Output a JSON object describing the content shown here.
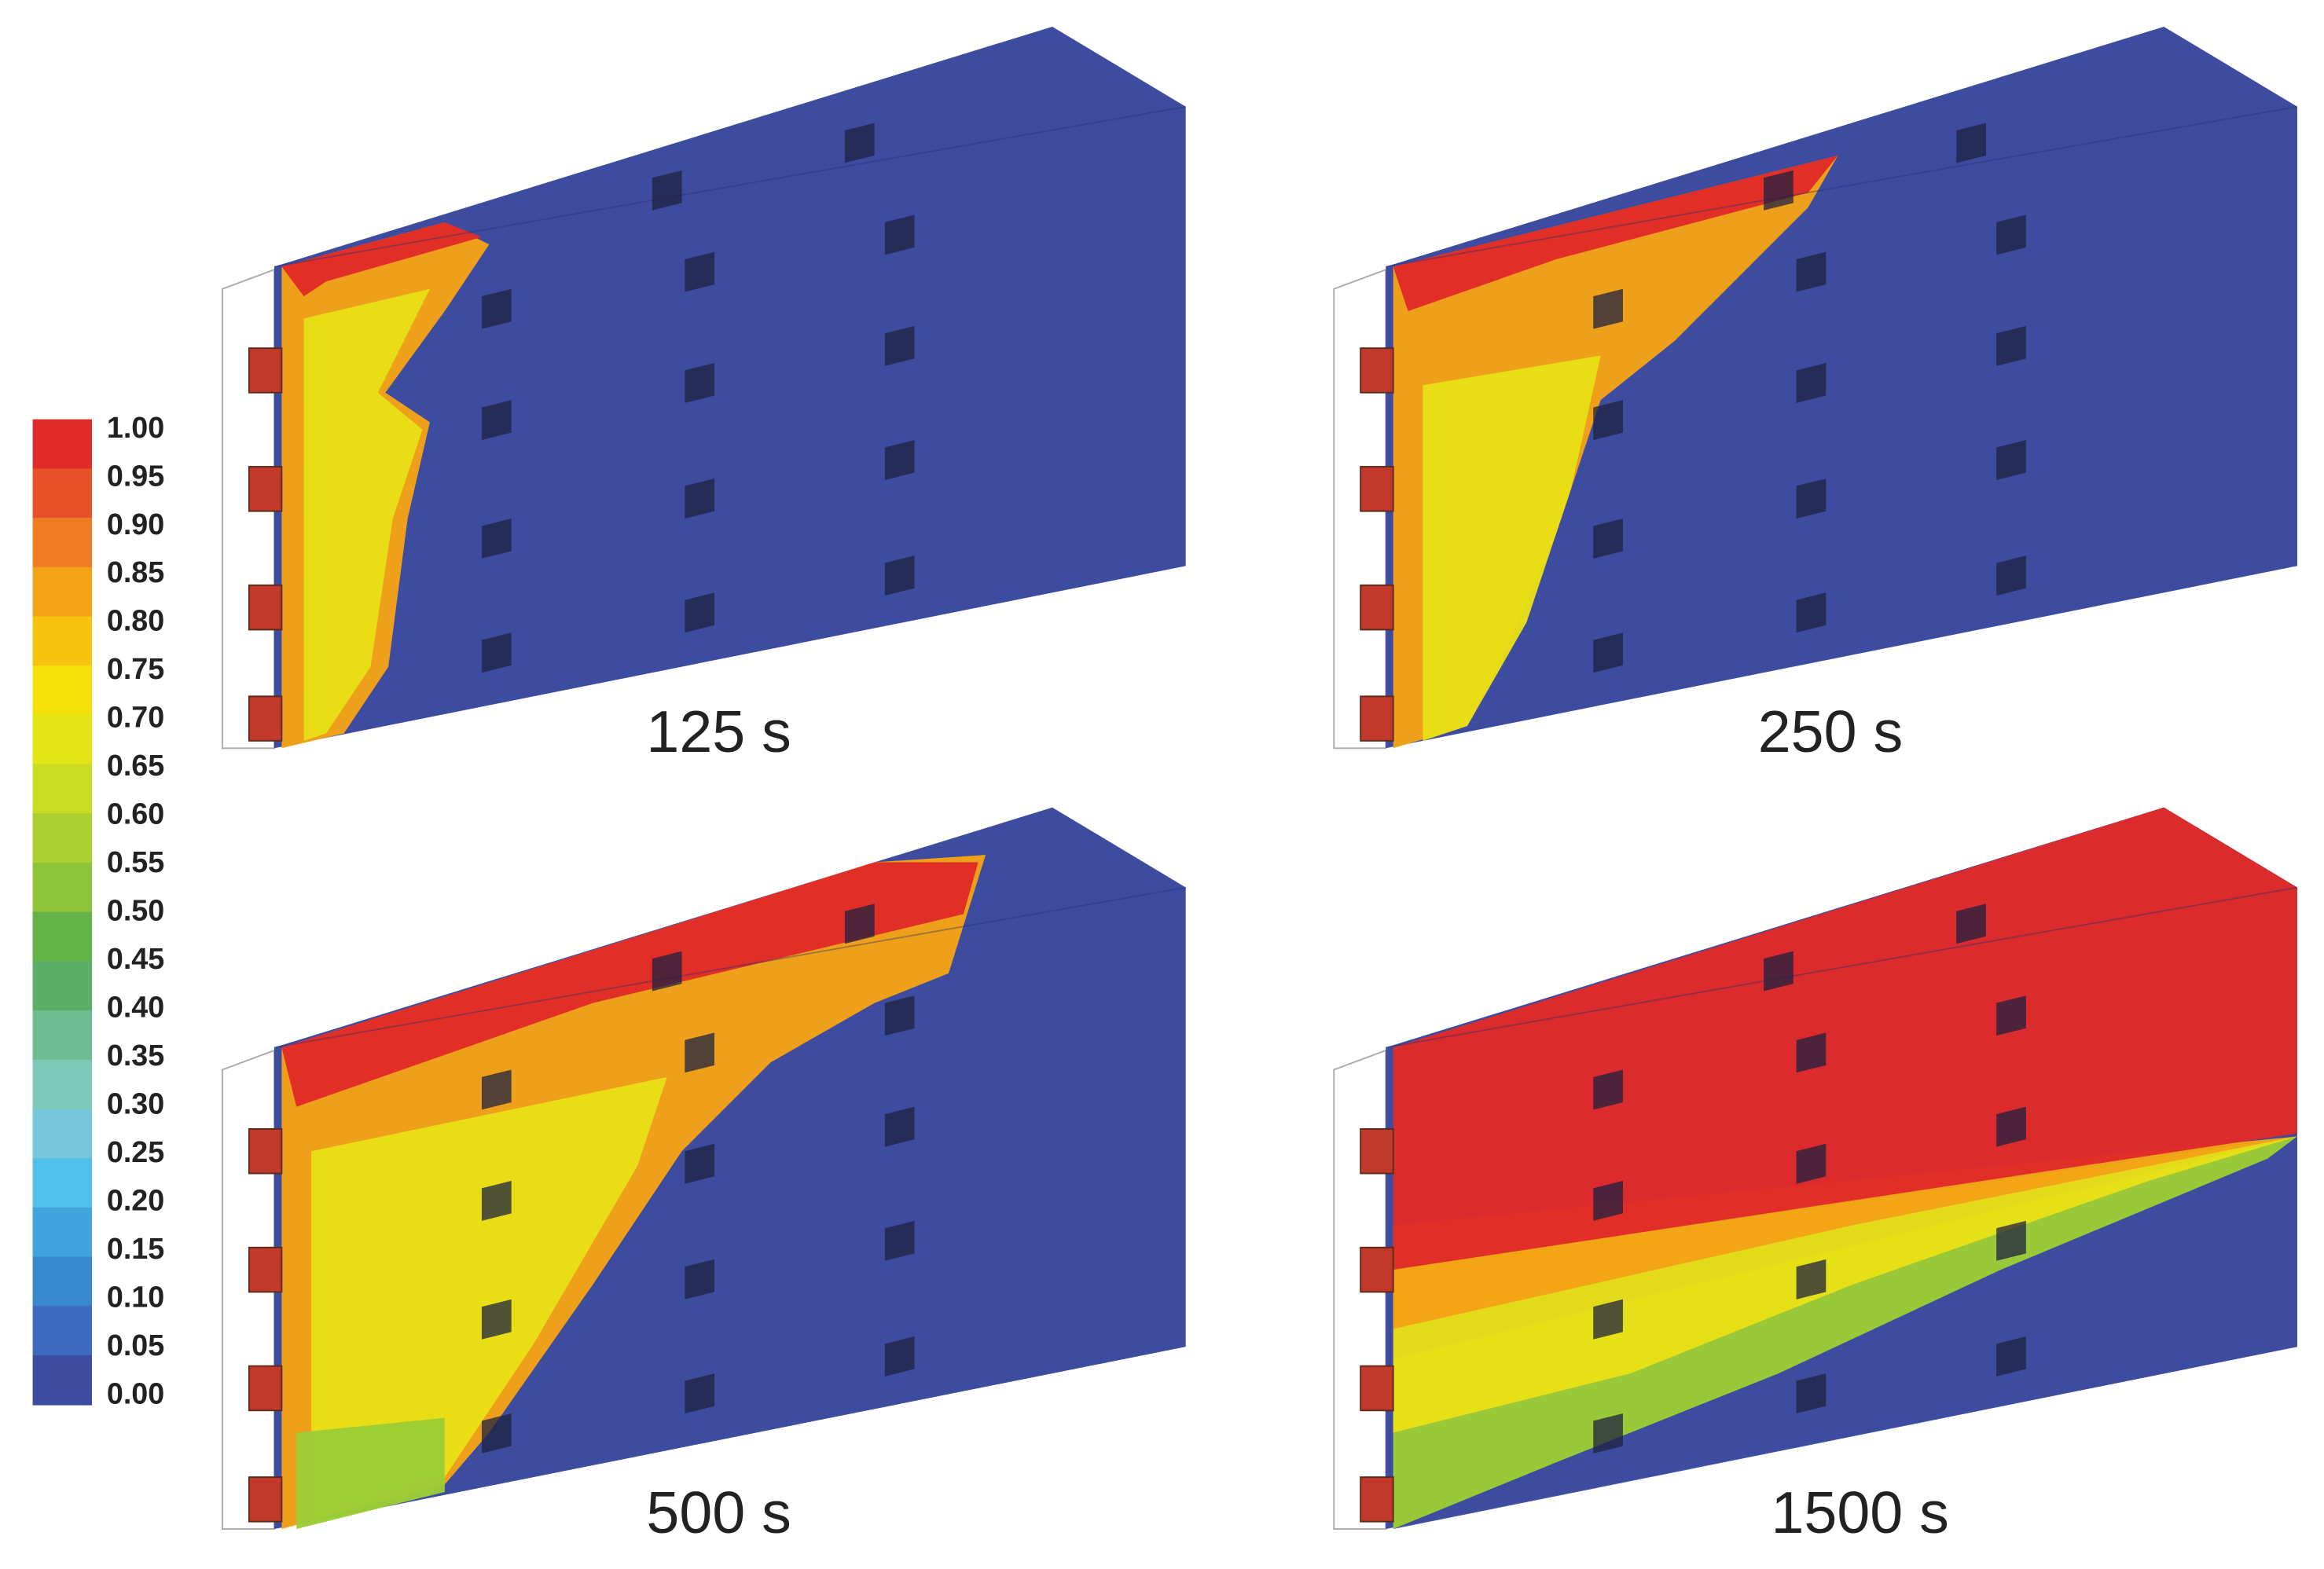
{
  "colorbar": {
    "labels": [
      "1.00",
      "0.95",
      "0.90",
      "0.85",
      "0.80",
      "0.75",
      "0.70",
      "0.65",
      "0.60",
      "0.55",
      "0.50",
      "0.45",
      "0.40",
      "0.35",
      "0.30",
      "0.25",
      "0.20",
      "0.15",
      "0.10",
      "0.05",
      "0.00"
    ],
    "colors": [
      "#e02a28",
      "#e7512a",
      "#ef7c22",
      "#f4a316",
      "#f8c30e",
      "#f6e00a",
      "#e3e416",
      "#c9dc22",
      "#abd030",
      "#8dc43a",
      "#63b447",
      "#5aae68",
      "#6dbc92",
      "#7dcab6",
      "#75c6d8",
      "#50c0ea",
      "#42a4dc",
      "#3a88cc",
      "#3c6abc",
      "#3e4ca0"
    ]
  },
  "panels": [
    {
      "label": "125 s"
    },
    {
      "label": "250 s"
    },
    {
      "label": "500 s"
    },
    {
      "label": "1500 s"
    }
  ]
}
